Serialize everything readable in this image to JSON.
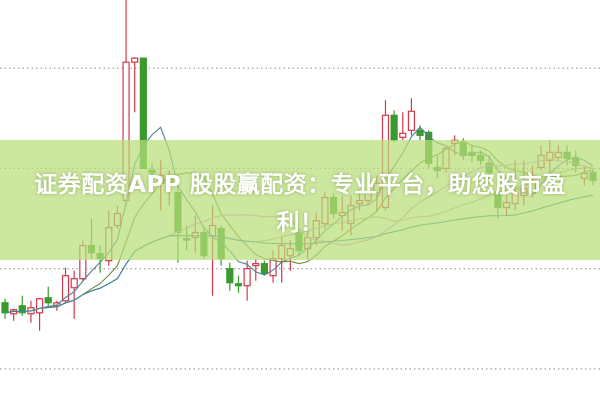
{
  "headline": {
    "line1": "证券配资APP 股股赢配资：专业平台，助您股市盈",
    "line2": "利！"
  },
  "colors": {
    "up": "#d2384a",
    "down": "#3a9a2e",
    "banner": "#b8de78",
    "grid": "#9a9a9a",
    "ma": [
      "#4f7f9a",
      "#6a8a3a",
      "#e08ad8",
      "#c0a890",
      "#2f8a9a"
    ]
  },
  "chart_data": {
    "type": "candlestick",
    "title": "",
    "xlabel": "",
    "ylabel": "",
    "ylim": [
      0,
      100
    ],
    "gridlines_y": [
      8,
      33,
      58,
      83
    ],
    "grid_style": "dotted horizontal",
    "ma_periods": [
      5,
      10,
      20,
      30,
      60
    ],
    "candles": [
      [
        24.5,
        25.5,
        20.5,
        22
      ],
      [
        21.75,
        23,
        20,
        22.75
      ],
      [
        23.75,
        26.25,
        21.25,
        22
      ],
      [
        21.75,
        25,
        19.5,
        23.25
      ],
      [
        22,
        25.75,
        17.5,
        25.5
      ],
      [
        25.75,
        28.5,
        23.75,
        24.5
      ],
      [
        23.75,
        25,
        22.5,
        24.5
      ],
      [
        25,
        33.25,
        24.25,
        31.25
      ],
      [
        28.25,
        32.5,
        20.5,
        30.5
      ],
      [
        30.5,
        40,
        30,
        38.75
      ],
      [
        38.75,
        45.5,
        35.5,
        37
      ],
      [
        36.75,
        38.75,
        32,
        35.5
      ],
      [
        35,
        47.5,
        33.75,
        43.25
      ],
      [
        43.75,
        48.75,
        43,
        46.75
      ],
      [
        50,
        100,
        48.75,
        84.5
      ],
      [
        84.5,
        85.75,
        72,
        85.5
      ],
      [
        85.5,
        85.5,
        58,
        58
      ],
      [
        57.5,
        59.25,
        55.5,
        57
      ],
      [
        54.25,
        60,
        47.5,
        56.25
      ],
      [
        54.5,
        57.5,
        48.75,
        55.5
      ],
      [
        52,
        55,
        34.5,
        42
      ],
      [
        40.5,
        43.75,
        37.5,
        40.25
      ],
      [
        40.75,
        46.25,
        37,
        42
      ],
      [
        42,
        43,
        35.5,
        36.25
      ],
      [
        41.25,
        48.75,
        26.25,
        43.75
      ],
      [
        43,
        43.75,
        33.75,
        35.5
      ],
      [
        33,
        34.5,
        27.5,
        29.5
      ],
      [
        29.25,
        31.25,
        27,
        28.75
      ],
      [
        28.75,
        35,
        25,
        33
      ],
      [
        33.75,
        35.5,
        30,
        34.25
      ],
      [
        34.25,
        35,
        31.25,
        31.75
      ],
      [
        31.25,
        37.5,
        29.5,
        35.5
      ],
      [
        35.5,
        41.25,
        29.5,
        38.75
      ],
      [
        36.25,
        40,
        32.5,
        38
      ],
      [
        42,
        43,
        36.25,
        37.5
      ],
      [
        38,
        42.5,
        35.5,
        40.75
      ],
      [
        40.75,
        47,
        38.75,
        45
      ],
      [
        44.25,
        52,
        43,
        50.75
      ],
      [
        50.75,
        51.75,
        45.5,
        46.75
      ],
      [
        46.25,
        51.25,
        42.5,
        47
      ],
      [
        44.25,
        51.25,
        41.25,
        48.75
      ],
      [
        49.25,
        52.5,
        47.5,
        50
      ],
      [
        50,
        55,
        48.75,
        52
      ],
      [
        52,
        56.25,
        47.25,
        54.25
      ],
      [
        48.25,
        75,
        47.5,
        71.25
      ],
      [
        71.25,
        72.5,
        64.5,
        65
      ],
      [
        65.75,
        72,
        65,
        66.75
      ],
      [
        67.5,
        75.5,
        66.25,
        72.25
      ],
      [
        67.5,
        68.75,
        65,
        66.25
      ],
      [
        67,
        67.5,
        58,
        59.25
      ],
      [
        58.25,
        61.25,
        55.5,
        57.5
      ],
      [
        58,
        63.75,
        57,
        63
      ],
      [
        64.25,
        66.25,
        61.25,
        65
      ],
      [
        64.5,
        65.5,
        60,
        61.25
      ],
      [
        62,
        63.75,
        59.5,
        61.25
      ],
      [
        61.25,
        62.5,
        58.75,
        60
      ],
      [
        59.25,
        61.25,
        55,
        57
      ],
      [
        52,
        55,
        45.5,
        48.25
      ],
      [
        48.25,
        51.25,
        46.25,
        49.5
      ],
      [
        49.25,
        60,
        47.5,
        52
      ],
      [
        51.25,
        60,
        48.75,
        53
      ],
      [
        51.75,
        58.75,
        50.75,
        55
      ],
      [
        58.25,
        63.75,
        57.5,
        61.25
      ],
      [
        60,
        65,
        56.25,
        62
      ],
      [
        60.75,
        63.75,
        60,
        62
      ],
      [
        62,
        63.75,
        58.75,
        60.5
      ],
      [
        60.5,
        62.5,
        57,
        58.75
      ],
      [
        55.5,
        58.75,
        53.75,
        56.75
      ],
      [
        57,
        58,
        53.75,
        55
      ]
    ]
  }
}
